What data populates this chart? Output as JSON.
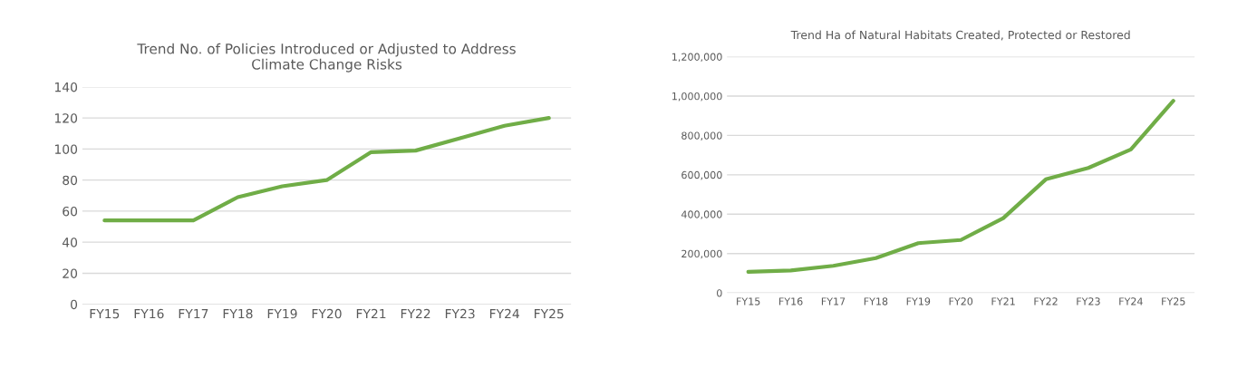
{
  "chart_data": [
    {
      "type": "line",
      "title": "Trend No. of Policies Introduced or Adjusted to Address\nClimate Change Risks",
      "categories": [
        "FY15",
        "FY16",
        "FY17",
        "FY18",
        "FY19",
        "FY20",
        "FY21",
        "FY22",
        "FY23",
        "FY24",
        "FY25"
      ],
      "series": [
        {
          "color": "#70ad47",
          "values": [
            54,
            54,
            54,
            69,
            76,
            80,
            98,
            99,
            107,
            115,
            120
          ]
        }
      ],
      "ylim": [
        0,
        140
      ],
      "yticks": [
        0,
        20,
        40,
        60,
        80,
        100,
        120,
        140
      ],
      "grid": "y",
      "legend": false
    },
    {
      "type": "line",
      "title": "Trend Ha of Natural Habitats Created, Protected or Restored",
      "categories": [
        "FY15",
        "FY16",
        "FY17",
        "FY18",
        "FY19",
        "FY20",
        "FY21",
        "FY22",
        "FY23",
        "FY24",
        "FY25"
      ],
      "series": [
        {
          "color": "#70ad47",
          "values": [
            107000,
            114000,
            138000,
            177000,
            253000,
            269000,
            380000,
            577000,
            635000,
            729000,
            976000
          ]
        }
      ],
      "ylim": [
        0,
        1200000
      ],
      "yticks": [
        0,
        {
          "value": 200000,
          "label": "200,000"
        },
        {
          "value": 400000,
          "label": "400,000"
        },
        {
          "value": 600000,
          "label": "600,000"
        },
        {
          "value": 800000,
          "label": "800,000"
        },
        {
          "value": 1000000,
          "label": "1,000,000"
        },
        {
          "value": 1200000,
          "label": "1,200,000"
        }
      ],
      "grid": "y",
      "legend": false
    }
  ]
}
